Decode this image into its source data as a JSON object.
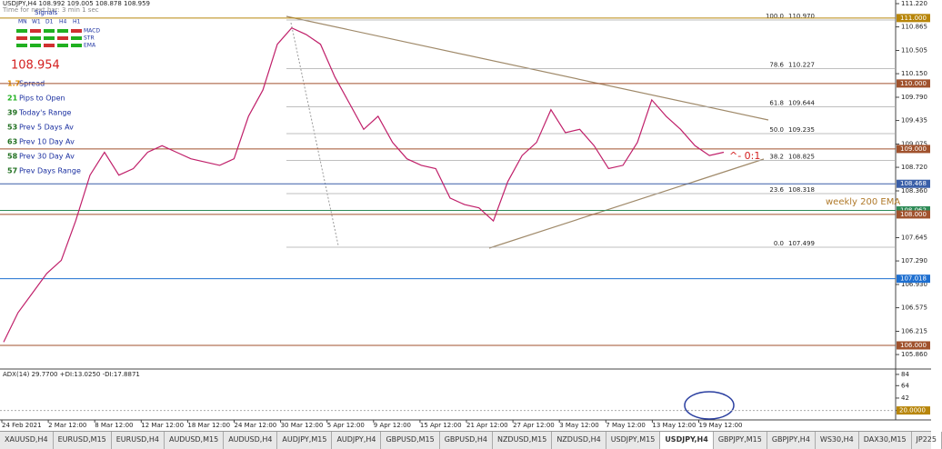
{
  "header": {
    "symbol_line": "USDJPY,H4  108.992 109.005 108.878 108.959",
    "timer": "Time for next bar: 3 min 1 sec"
  },
  "signals": {
    "title": "Signals",
    "timeframes": [
      "MN",
      "W1",
      "D1",
      "H4",
      "H1"
    ],
    "indicators": [
      "MACD",
      "STR",
      "EMA"
    ]
  },
  "bid": "108.954",
  "stats": [
    {
      "value": "1.7",
      "label": "Spread"
    },
    {
      "value": "21",
      "label": "Pips to Open"
    },
    {
      "value": "39",
      "label": "Today's Range"
    },
    {
      "value": "53",
      "label": "Prev 5 Days Av"
    },
    {
      "value": "63",
      "label": "Prev 10 Day Av"
    },
    {
      "value": "58",
      "label": "Prev 30 Day Av"
    },
    {
      "value": "57",
      "label": "Prev Days Range"
    }
  ],
  "price_axis": [
    "111.220",
    "110.865",
    "110.505",
    "110.150",
    "109.790",
    "109.435",
    "109.075",
    "108.720",
    "108.360",
    "107.645",
    "107.290",
    "106.930",
    "106.575",
    "106.215",
    "105.860"
  ],
  "levels": [
    {
      "label": "111.000",
      "color": "#b8860b"
    },
    {
      "label": "110.000",
      "color": "#a0522d"
    },
    {
      "label": "109.000",
      "color": "#a0522d"
    },
    {
      "label": "108.468",
      "color": "#3a5fa8"
    },
    {
      "label": "108.062",
      "color": "#2e8b57"
    },
    {
      "label": "108.000",
      "color": "#a0522d"
    },
    {
      "label": "107.018",
      "color": "#1e6fd0"
    },
    {
      "label": "106.000",
      "color": "#a0522d"
    }
  ],
  "fibonacci": [
    {
      "ratio": "100.0",
      "price": "110.970"
    },
    {
      "ratio": "78.6",
      "price": "110.227"
    },
    {
      "ratio": "61.8",
      "price": "109.644"
    },
    {
      "ratio": "50.0",
      "price": "109.235"
    },
    {
      "ratio": "38.2",
      "price": "108.825"
    },
    {
      "ratio": "23.6",
      "price": "108.318"
    },
    {
      "ratio": "0.0",
      "price": "107.499"
    }
  ],
  "annotations": {
    "ema": "weekly 200 EMA",
    "ratio": "^- 0:1"
  },
  "price_series": [
    106.05,
    106.5,
    106.8,
    107.1,
    107.3,
    107.9,
    108.6,
    108.95,
    108.6,
    108.7,
    108.95,
    109.05,
    108.95,
    108.85,
    108.8,
    108.75,
    108.85,
    109.5,
    109.9,
    110.6,
    110.85,
    110.75,
    110.6,
    110.1,
    109.7,
    109.3,
    109.5,
    109.1,
    108.85,
    108.75,
    108.7,
    108.25,
    108.15,
    108.1,
    107.9,
    108.5,
    108.9,
    109.1,
    109.6,
    109.25,
    109.3,
    109.05,
    108.7,
    108.75,
    109.1,
    109.75,
    109.5,
    109.3,
    109.05,
    108.9,
    108.95
  ],
  "indicator": {
    "title": "ADX(14) 29.7700 +DI:13.0250 -DI:17.8871",
    "axis": [
      "84",
      "64",
      "42",
      "20"
    ],
    "level": "20.0000"
  },
  "time_axis": [
    "24 Feb 2021",
    "2 Mar 12:00",
    "8 Mar 12:00",
    "12 Mar 12:00",
    "18 Mar 12:00",
    "24 Mar 12:00",
    "30 Mar 12:00",
    "5 Apr 12:00",
    "9 Apr 12:00",
    "15 Apr 12:00",
    "21 Apr 12:00",
    "27 Apr 12:00",
    "3 May 12:00",
    "7 May 12:00",
    "13 May 12:00",
    "19 May 12:00"
  ],
  "tabs": [
    "XAUUSD,H4",
    "EURUSD,M15",
    "EURUSD,H4",
    "AUDUSD,M15",
    "AUDUSD,H4",
    "AUDJPY,M15",
    "AUDJPY,H4",
    "GBPUSD,M15",
    "GBPUSD,H4",
    "NZDUSD,M15",
    "NZDUSD,H4",
    "USDJPY,M15",
    "USDJPY,H4",
    "GBPJPY,M15",
    "GBPJPY,H4",
    "WS30,H4",
    "DAX30,M15",
    "JP225"
  ]
}
